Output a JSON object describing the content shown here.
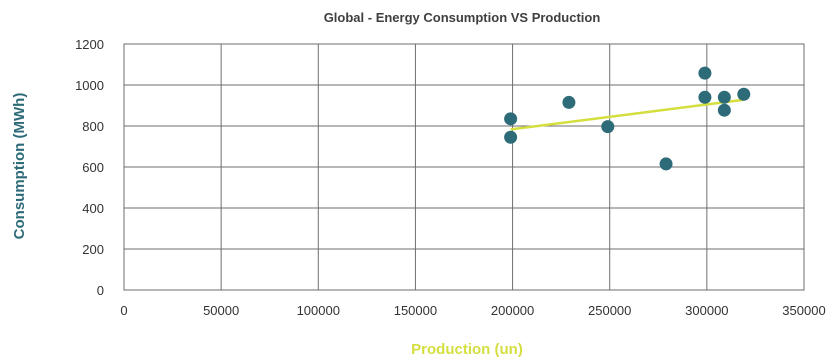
{
  "chart_data": {
    "type": "scatter",
    "title": "Global - Energy Consumption VS Production",
    "xlabel": "Production (un)",
    "ylabel": "Consumption (MWh)",
    "xlim": [
      0,
      350000
    ],
    "ylim": [
      0,
      1200
    ],
    "x_ticks": [
      "0",
      "50000",
      "100000",
      "150000",
      "200000",
      "250000",
      "300000",
      "350000"
    ],
    "y_ticks": [
      "0",
      "200",
      "400",
      "600",
      "800",
      "1000",
      "1200"
    ],
    "grid": true,
    "series": [
      {
        "points": [
          {
            "x": 199000,
            "y": 835
          },
          {
            "x": 199000,
            "y": 745
          },
          {
            "x": 229000,
            "y": 915
          },
          {
            "x": 249000,
            "y": 797
          },
          {
            "x": 279000,
            "y": 615
          },
          {
            "x": 299000,
            "y": 1058
          },
          {
            "x": 299000,
            "y": 940
          },
          {
            "x": 309000,
            "y": 940
          },
          {
            "x": 309000,
            "y": 877
          },
          {
            "x": 319000,
            "y": 955
          }
        ]
      }
    ],
    "trendline": {
      "type": "linear",
      "x_start": 199000,
      "x_end": 319000
    },
    "colors": {
      "points": "#2e6b78",
      "trendline": "#d4df3f",
      "xlabel": "#d4df3f",
      "ylabel": "#2e6b78",
      "grid": "#6e6e6e"
    }
  }
}
